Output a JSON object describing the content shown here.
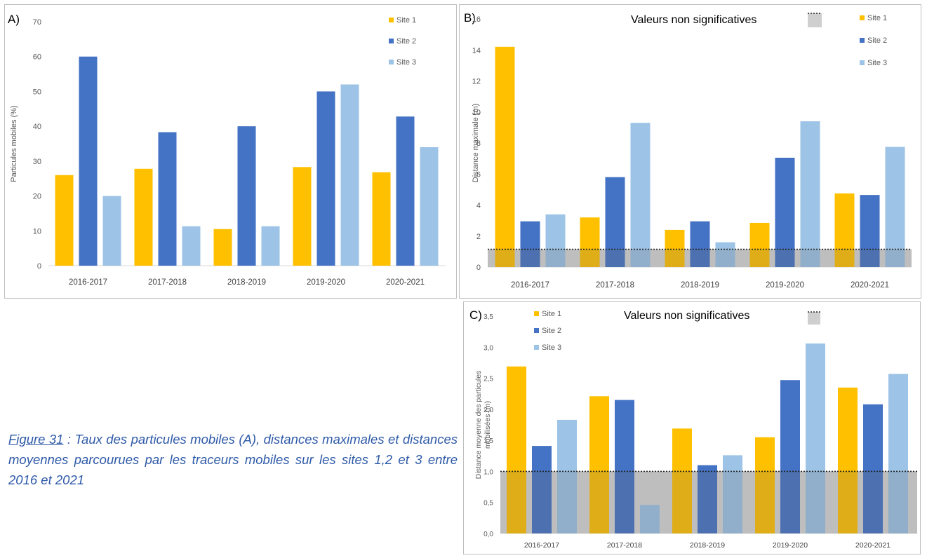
{
  "colors": {
    "site1": "#ffc000",
    "site2": "#4472c4",
    "site3": "#9dc3e6",
    "non_significant": "#bfbfbf",
    "axis_text": "#595959",
    "caption": "#2e5aa8"
  },
  "caption": {
    "figure_label": "Figure 31",
    "text": " : Taux des particules mobiles (A), distances maximales et distances moyennes parcourues par les traceurs mobiles sur les sites 1,2 et 3 entre 2016 et 2021"
  },
  "chart_data": [
    {
      "panel_label": "A)",
      "type": "bar",
      "title": "",
      "xlabel": "",
      "ylabel": "Particules mobiles (%)",
      "ylim": [
        0,
        70
      ],
      "yticks": [
        "0",
        "10",
        "20",
        "30",
        "40",
        "50",
        "60",
        "70"
      ],
      "categories": [
        "2016-2017",
        "2017-2018",
        "2018-2019",
        "2019-2020",
        "2020-2021"
      ],
      "legend_position": "top-right",
      "grid": false,
      "series": [
        {
          "name": "Site 1",
          "values": [
            26,
            27.8,
            10.5,
            28.3,
            26.8
          ]
        },
        {
          "name": "Site 2",
          "values": [
            60,
            38.3,
            40,
            50,
            42.8
          ]
        },
        {
          "name": "Site 3",
          "values": [
            20,
            11.3,
            11.3,
            52,
            34
          ]
        }
      ]
    },
    {
      "panel_label": "B)",
      "type": "bar",
      "title": "",
      "xlabel": "",
      "ylabel": "Distance maximale (m)",
      "ylim": [
        0,
        16
      ],
      "yticks": [
        "0",
        "2",
        "4",
        "6",
        "8",
        "10",
        "12",
        "14",
        "16"
      ],
      "categories": [
        "2016-2017",
        "2017-2018",
        "2018-2019",
        "2019-2020",
        "2020-2021"
      ],
      "legend_position": "top-right",
      "grid": false,
      "threshold": {
        "label": "Valeurs non significatives",
        "value": 1.15
      },
      "series": [
        {
          "name": "Site 1",
          "values": [
            14.2,
            3.2,
            2.4,
            2.85,
            4.75
          ]
        },
        {
          "name": "Site 2",
          "values": [
            2.95,
            5.8,
            2.95,
            7.05,
            4.65
          ]
        },
        {
          "name": "Site 3",
          "values": [
            3.4,
            9.3,
            1.6,
            9.4,
            7.75
          ]
        }
      ]
    },
    {
      "panel_label": "C)",
      "type": "bar",
      "title": "",
      "xlabel": "",
      "ylabel": "Distance moyenne des particules mobilisées (m)",
      "ylabel_lines": [
        "Distance moyenne des particules",
        "mobilisées (m)"
      ],
      "ylim": [
        0,
        3.5
      ],
      "yticks": [
        "0,0",
        "0,5",
        "1,0",
        "1,5",
        "2,0",
        "2,5",
        "3,0",
        "3,5"
      ],
      "categories": [
        "2016-2017",
        "2017-2018",
        "2018-2019",
        "2019-2020",
        "2020-2021"
      ],
      "legend_position": "top-left",
      "grid": false,
      "threshold": {
        "label": "Valeurs non significatives",
        "value": 1.0
      },
      "series": [
        {
          "name": "Site 1",
          "values": [
            2.69,
            2.21,
            1.69,
            1.55,
            2.35
          ]
        },
        {
          "name": "Site 2",
          "values": [
            1.41,
            2.15,
            1.1,
            2.47,
            2.08
          ]
        },
        {
          "name": "Site 3",
          "values": [
            1.83,
            0.46,
            1.26,
            3.06,
            2.57
          ]
        }
      ]
    }
  ]
}
